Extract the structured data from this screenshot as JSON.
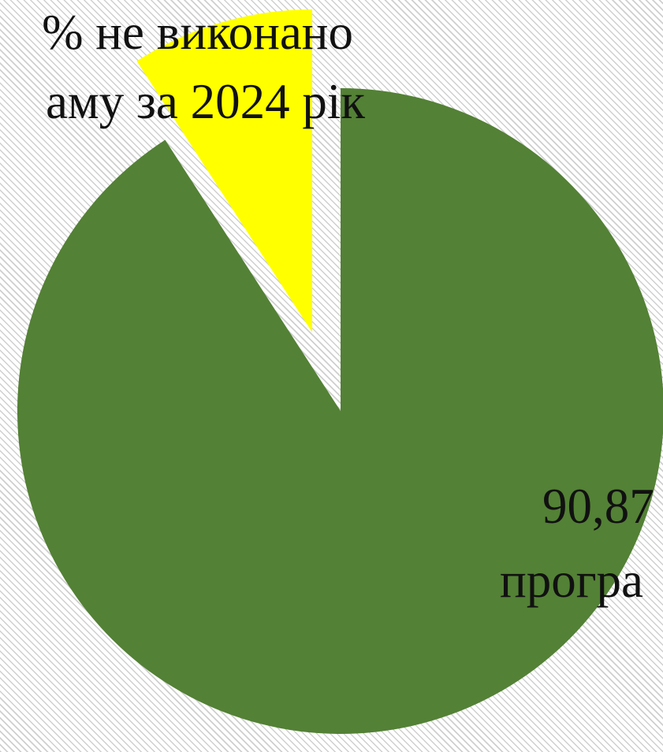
{
  "chart_data": {
    "type": "pie",
    "title": "",
    "slices": [
      {
        "value": 90.87,
        "color": "#538135",
        "label_line1": "90,87",
        "label_line2": "програ"
      },
      {
        "value": 9.13,
        "color": "#ffff00",
        "label_line1": "% не виконано",
        "label_line2": "аму за 2024 рік"
      }
    ],
    "legend": "none"
  }
}
